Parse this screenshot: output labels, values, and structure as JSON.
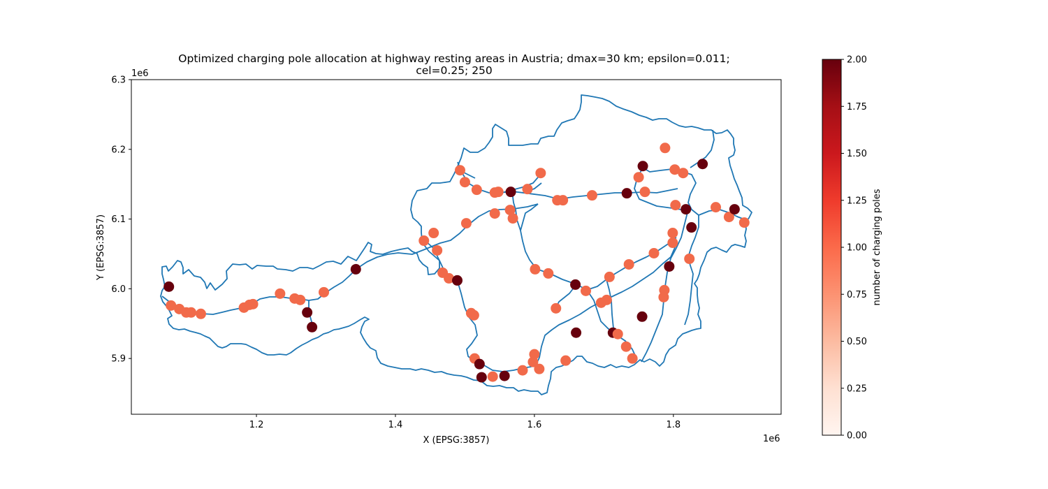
{
  "chart_data": {
    "type": "scatter",
    "title_line1": "Optimized charging pole allocation at highway resting areas in Austria; dmax=30 km; epsilon=0.011;",
    "title_line2": "cel=0.25; 250",
    "xlabel": "X (EPSG:3857)",
    "ylabel": "Y (EPSG:3857)",
    "x_offset_label": "1e6",
    "y_offset_label": "1e6",
    "xlim": [
      1.02,
      1.955
    ],
    "ylim": [
      5.82,
      6.3
    ],
    "x_ticks": [
      1.2,
      1.4,
      1.6,
      1.8
    ],
    "x_tick_labels": [
      "1.2",
      "1.4",
      "1.6",
      "1.8"
    ],
    "y_ticks": [
      5.9,
      6.0,
      6.1,
      6.2,
      6.3
    ],
    "y_tick_labels": [
      "5.9",
      "6.0",
      "6.1",
      "6.2",
      "6.3"
    ],
    "colorbar": {
      "label": "number of charging poles",
      "min": 0,
      "max": 2,
      "ticks": [
        0.0,
        0.25,
        0.5,
        0.75,
        1.0,
        1.25,
        1.5,
        1.75,
        2.0
      ],
      "tick_labels": [
        "0.00",
        "0.25",
        "0.50",
        "0.75",
        "1.00",
        "1.25",
        "1.50",
        "1.75",
        "2.00"
      ],
      "colormap": "Reds"
    },
    "colors": {
      "one_pole": "#f16a4a",
      "two_poles": "#67000d",
      "outline": "#1f77b4"
    },
    "points": [
      {
        "x": 1.074,
        "y": 6.003,
        "v": 2
      },
      {
        "x": 1.077,
        "y": 5.976,
        "v": 1
      },
      {
        "x": 1.089,
        "y": 5.971,
        "v": 1
      },
      {
        "x": 1.099,
        "y": 5.966,
        "v": 1
      },
      {
        "x": 1.106,
        "y": 5.966,
        "v": 1
      },
      {
        "x": 1.12,
        "y": 5.964,
        "v": 1
      },
      {
        "x": 1.182,
        "y": 5.973,
        "v": 1
      },
      {
        "x": 1.19,
        "y": 5.977,
        "v": 1
      },
      {
        "x": 1.195,
        "y": 5.978,
        "v": 1
      },
      {
        "x": 1.234,
        "y": 5.993,
        "v": 1
      },
      {
        "x": 1.255,
        "y": 5.986,
        "v": 1
      },
      {
        "x": 1.263,
        "y": 5.984,
        "v": 1
      },
      {
        "x": 1.273,
        "y": 5.966,
        "v": 2
      },
      {
        "x": 1.28,
        "y": 5.945,
        "v": 2
      },
      {
        "x": 1.297,
        "y": 5.995,
        "v": 1
      },
      {
        "x": 1.343,
        "y": 6.028,
        "v": 2
      },
      {
        "x": 1.441,
        "y": 6.069,
        "v": 1
      },
      {
        "x": 1.455,
        "y": 6.08,
        "v": 1
      },
      {
        "x": 1.46,
        "y": 6.055,
        "v": 1
      },
      {
        "x": 1.468,
        "y": 6.023,
        "v": 1
      },
      {
        "x": 1.477,
        "y": 6.015,
        "v": 1
      },
      {
        "x": 1.489,
        "y": 6.012,
        "v": 2
      },
      {
        "x": 1.493,
        "y": 6.17,
        "v": 1
      },
      {
        "x": 1.5,
        "y": 6.153,
        "v": 1
      },
      {
        "x": 1.502,
        "y": 6.094,
        "v": 1
      },
      {
        "x": 1.509,
        "y": 5.965,
        "v": 1
      },
      {
        "x": 1.513,
        "y": 5.962,
        "v": 1
      },
      {
        "x": 1.514,
        "y": 5.9,
        "v": 1
      },
      {
        "x": 1.517,
        "y": 6.142,
        "v": 1
      },
      {
        "x": 1.521,
        "y": 5.892,
        "v": 2
      },
      {
        "x": 1.524,
        "y": 5.873,
        "v": 2
      },
      {
        "x": 1.54,
        "y": 5.874,
        "v": 1
      },
      {
        "x": 1.543,
        "y": 6.108,
        "v": 1
      },
      {
        "x": 1.543,
        "y": 6.138,
        "v": 1
      },
      {
        "x": 1.548,
        "y": 6.139,
        "v": 1
      },
      {
        "x": 1.557,
        "y": 5.875,
        "v": 2
      },
      {
        "x": 1.565,
        "y": 6.113,
        "v": 1
      },
      {
        "x": 1.566,
        "y": 6.139,
        "v": 2
      },
      {
        "x": 1.569,
        "y": 6.101,
        "v": 1
      },
      {
        "x": 1.583,
        "y": 5.883,
        "v": 1
      },
      {
        "x": 1.59,
        "y": 6.143,
        "v": 1
      },
      {
        "x": 1.598,
        "y": 5.895,
        "v": 1
      },
      {
        "x": 1.6,
        "y": 5.906,
        "v": 1
      },
      {
        "x": 1.601,
        "y": 6.028,
        "v": 1
      },
      {
        "x": 1.607,
        "y": 5.885,
        "v": 1
      },
      {
        "x": 1.609,
        "y": 6.166,
        "v": 1
      },
      {
        "x": 1.62,
        "y": 6.022,
        "v": 1
      },
      {
        "x": 1.631,
        "y": 5.972,
        "v": 1
      },
      {
        "x": 1.633,
        "y": 6.127,
        "v": 1
      },
      {
        "x": 1.641,
        "y": 6.127,
        "v": 1
      },
      {
        "x": 1.645,
        "y": 5.897,
        "v": 1
      },
      {
        "x": 1.659,
        "y": 6.006,
        "v": 2
      },
      {
        "x": 1.66,
        "y": 5.937,
        "v": 2
      },
      {
        "x": 1.674,
        "y": 5.997,
        "v": 1
      },
      {
        "x": 1.683,
        "y": 6.134,
        "v": 1
      },
      {
        "x": 1.696,
        "y": 5.98,
        "v": 1
      },
      {
        "x": 1.704,
        "y": 5.984,
        "v": 1
      },
      {
        "x": 1.708,
        "y": 6.017,
        "v": 1
      },
      {
        "x": 1.713,
        "y": 5.937,
        "v": 2
      },
      {
        "x": 1.72,
        "y": 5.935,
        "v": 1
      },
      {
        "x": 1.732,
        "y": 5.917,
        "v": 1
      },
      {
        "x": 1.733,
        "y": 6.137,
        "v": 2
      },
      {
        "x": 1.736,
        "y": 6.035,
        "v": 1
      },
      {
        "x": 1.741,
        "y": 5.9,
        "v": 1
      },
      {
        "x": 1.75,
        "y": 6.16,
        "v": 1
      },
      {
        "x": 1.755,
        "y": 5.96,
        "v": 2
      },
      {
        "x": 1.756,
        "y": 6.176,
        "v": 2
      },
      {
        "x": 1.759,
        "y": 6.139,
        "v": 1
      },
      {
        "x": 1.772,
        "y": 6.051,
        "v": 1
      },
      {
        "x": 1.786,
        "y": 5.988,
        "v": 1
      },
      {
        "x": 1.787,
        "y": 5.998,
        "v": 1
      },
      {
        "x": 1.788,
        "y": 6.202,
        "v": 1
      },
      {
        "x": 1.794,
        "y": 6.032,
        "v": 2
      },
      {
        "x": 1.799,
        "y": 6.066,
        "v": 1
      },
      {
        "x": 1.799,
        "y": 6.08,
        "v": 1
      },
      {
        "x": 1.802,
        "y": 6.171,
        "v": 1
      },
      {
        "x": 1.803,
        "y": 6.12,
        "v": 1
      },
      {
        "x": 1.814,
        "y": 6.166,
        "v": 1
      },
      {
        "x": 1.818,
        "y": 6.114,
        "v": 2
      },
      {
        "x": 1.823,
        "y": 6.043,
        "v": 1
      },
      {
        "x": 1.826,
        "y": 6.088,
        "v": 2
      },
      {
        "x": 1.842,
        "y": 6.179,
        "v": 2
      },
      {
        "x": 1.861,
        "y": 6.117,
        "v": 1
      },
      {
        "x": 1.88,
        "y": 6.103,
        "v": 1
      },
      {
        "x": 1.888,
        "y": 6.114,
        "v": 2
      },
      {
        "x": 1.902,
        "y": 6.095,
        "v": 1
      }
    ]
  }
}
